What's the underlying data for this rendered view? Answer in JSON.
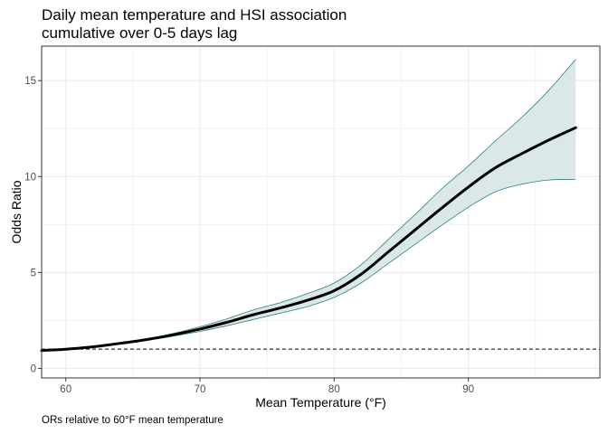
{
  "chart_data": {
    "type": "line",
    "title": "Daily mean temperature and HSI association",
    "subtitle": "cumulative over 0-5 days lag",
    "xlabel": "Mean Temperature (°F)",
    "ylabel": "Odds Ratio",
    "caption": "ORs relative to 60°F mean temperature",
    "xlim": [
      58.2,
      99.8
    ],
    "ylim": [
      -0.5,
      16.8
    ],
    "xticks": [
      60,
      70,
      80,
      90
    ],
    "yticks": [
      0,
      5,
      10,
      15
    ],
    "grid": true,
    "reference_line": {
      "y": 1,
      "style": "dashed"
    },
    "colors": {
      "line": "#000000",
      "band_fill": "#dae9e8",
      "band_edge": "#2f7f7f",
      "grid": "#ebebeb",
      "panel_border": "#333333"
    },
    "series": [
      {
        "x": [
          58,
          60,
          62,
          64,
          66,
          68,
          70,
          72,
          74,
          76,
          78,
          80,
          82,
          84,
          86,
          88,
          90,
          92,
          94,
          96,
          98
        ],
        "y": [
          0.93,
          1.0,
          1.12,
          1.3,
          1.5,
          1.75,
          2.05,
          2.4,
          2.8,
          3.15,
          3.55,
          4.05,
          4.9,
          6.05,
          7.2,
          8.35,
          9.45,
          10.45,
          11.2,
          11.9,
          12.55
        ],
        "lower": [
          0.93,
          1.0,
          1.12,
          1.28,
          1.46,
          1.68,
          1.93,
          2.22,
          2.55,
          2.88,
          3.22,
          3.7,
          4.45,
          5.45,
          6.45,
          7.45,
          8.4,
          9.2,
          9.6,
          9.82,
          9.85
        ],
        "upper": [
          0.93,
          1.0,
          1.12,
          1.32,
          1.54,
          1.82,
          2.17,
          2.58,
          3.05,
          3.43,
          3.9,
          4.45,
          5.4,
          6.7,
          8.0,
          9.35,
          10.55,
          11.85,
          13.1,
          14.5,
          16.1
        ]
      }
    ]
  }
}
